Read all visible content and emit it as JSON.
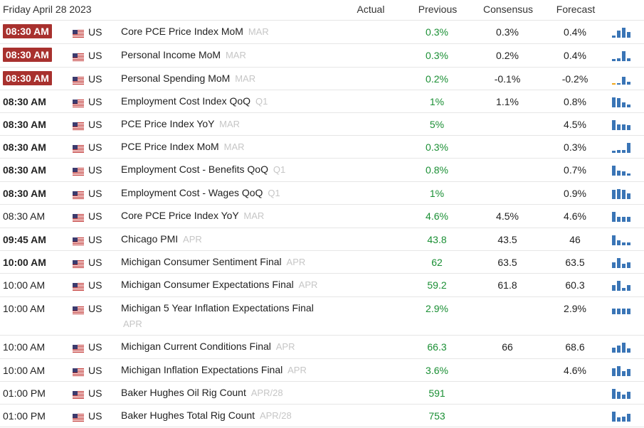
{
  "header": {
    "date": "Friday April 28 2023",
    "actual": "Actual",
    "previous": "Previous",
    "consensus": "Consensus",
    "forecast": "Forecast"
  },
  "colors": {
    "badge_bg": "#a8312e",
    "previous_text": "#1a8f34",
    "spark_bar": "#3a75b6",
    "spark_bar_alt": "#f0a61c",
    "period_text": "#c6c6c6"
  },
  "rows": [
    {
      "time": "08:30 AM",
      "time_style": "badge",
      "country": "US",
      "event": "Core PCE Price Index MoM",
      "period": "MAR",
      "actual": "",
      "previous": "0.3%",
      "consensus": "0.3%",
      "forecast": "0.4%",
      "spark": [
        0.2,
        0.7,
        1.0,
        0.6
      ]
    },
    {
      "time": "08:30 AM",
      "time_style": "badge",
      "country": "US",
      "event": "Personal Income MoM",
      "period": "MAR",
      "actual": "",
      "previous": "0.3%",
      "consensus": "0.2%",
      "forecast": "0.4%",
      "spark": [
        0.2,
        0.3,
        1.0,
        0.3
      ]
    },
    {
      "time": "08:30 AM",
      "time_style": "badge",
      "country": "US",
      "event": "Personal Spending MoM",
      "period": "MAR",
      "actual": "",
      "previous": "0.2%",
      "consensus": "-0.1%",
      "forecast": "-0.2%",
      "spark": [
        0.1,
        0,
        0.8,
        0.3
      ]
    },
    {
      "time": "08:30 AM",
      "time_style": "bold",
      "country": "US",
      "event": "Employment Cost Index QoQ",
      "period": "Q1",
      "actual": "",
      "previous": "1%",
      "consensus": "1.1%",
      "forecast": "0.8%",
      "spark": [
        1.0,
        0.9,
        0.5,
        0.3
      ]
    },
    {
      "time": "08:30 AM",
      "time_style": "bold",
      "country": "US",
      "event": "PCE Price Index YoY",
      "period": "MAR",
      "actual": "",
      "previous": "5%",
      "consensus": "",
      "forecast": "4.5%",
      "spark": [
        1.0,
        0.6,
        0.6,
        0.5
      ]
    },
    {
      "time": "08:30 AM",
      "time_style": "bold",
      "country": "US",
      "event": "PCE Price Index MoM",
      "period": "MAR",
      "actual": "",
      "previous": "0.3%",
      "consensus": "",
      "forecast": "0.3%",
      "spark": [
        0.2,
        0.3,
        0.3,
        1.0
      ]
    },
    {
      "time": "08:30 AM",
      "time_style": "bold",
      "country": "US",
      "event": "Employment Cost - Benefits QoQ",
      "period": "Q1",
      "actual": "",
      "previous": "0.8%",
      "consensus": "",
      "forecast": "0.7%",
      "spark": [
        1.0,
        0.5,
        0.4,
        0.2
      ]
    },
    {
      "time": "08:30 AM",
      "time_style": "bold",
      "country": "US",
      "event": "Employment Cost - Wages QoQ",
      "period": "Q1",
      "actual": "",
      "previous": "1%",
      "consensus": "",
      "forecast": "0.9%",
      "spark": [
        0.9,
        1.0,
        0.9,
        0.6
      ]
    },
    {
      "time": "08:30 AM",
      "time_style": "normal",
      "country": "US",
      "event": "Core PCE Price Index YoY",
      "period": "MAR",
      "actual": "",
      "previous": "4.6%",
      "consensus": "4.5%",
      "forecast": "4.6%",
      "spark": [
        1.0,
        0.5,
        0.5,
        0.5
      ]
    },
    {
      "time": "09:45 AM",
      "time_style": "bold",
      "country": "US",
      "event": "Chicago PMI",
      "period": "APR",
      "actual": "",
      "previous": "43.8",
      "consensus": "43.5",
      "forecast": "46",
      "spark": [
        1.0,
        0.5,
        0.3,
        0.3
      ]
    },
    {
      "time": "10:00 AM",
      "time_style": "bold",
      "country": "US",
      "event": "Michigan Consumer Sentiment Final",
      "period": "APR",
      "actual": "",
      "previous": "62",
      "consensus": "63.5",
      "forecast": "63.5",
      "spark": [
        0.6,
        1.0,
        0.4,
        0.6
      ]
    },
    {
      "time": "10:00 AM",
      "time_style": "normal",
      "country": "US",
      "event": "Michigan Consumer Expectations Final",
      "period": "APR",
      "actual": "",
      "previous": "59.2",
      "consensus": "61.8",
      "forecast": "60.3",
      "spark": [
        0.6,
        1.0,
        0.3,
        0.6
      ]
    },
    {
      "time": "10:00 AM",
      "time_style": "normal",
      "country": "US",
      "event": "Michigan 5 Year Inflation Expectations Final",
      "period": "APR",
      "actual": "",
      "previous": "2.9%",
      "consensus": "",
      "forecast": "2.9%",
      "spark": [
        0.6,
        0.6,
        0.6,
        0.6
      ]
    },
    {
      "time": "10:00 AM",
      "time_style": "normal",
      "country": "US",
      "event": "Michigan Current Conditions Final",
      "period": "APR",
      "actual": "",
      "previous": "66.3",
      "consensus": "66",
      "forecast": "68.6",
      "spark": [
        0.5,
        0.7,
        1.0,
        0.4
      ]
    },
    {
      "time": "10:00 AM",
      "time_style": "normal",
      "country": "US",
      "event": "Michigan Inflation Expectations Final",
      "period": "APR",
      "actual": "",
      "previous": "3.6%",
      "consensus": "",
      "forecast": "4.6%",
      "spark": [
        0.8,
        1.0,
        0.5,
        0.7
      ]
    },
    {
      "time": "01:00 PM",
      "time_style": "normal",
      "country": "US",
      "event": "Baker Hughes Oil Rig Count",
      "period": "APR/28",
      "actual": "",
      "previous": "591",
      "consensus": "",
      "forecast": "",
      "spark": [
        1.0,
        0.7,
        0.4,
        0.7
      ]
    },
    {
      "time": "01:00 PM",
      "time_style": "normal",
      "country": "US",
      "event": "Baker Hughes Total Rig Count",
      "period": "APR/28",
      "actual": "",
      "previous": "753",
      "consensus": "",
      "forecast": "",
      "spark": [
        1.0,
        0.4,
        0.5,
        0.8
      ]
    }
  ]
}
